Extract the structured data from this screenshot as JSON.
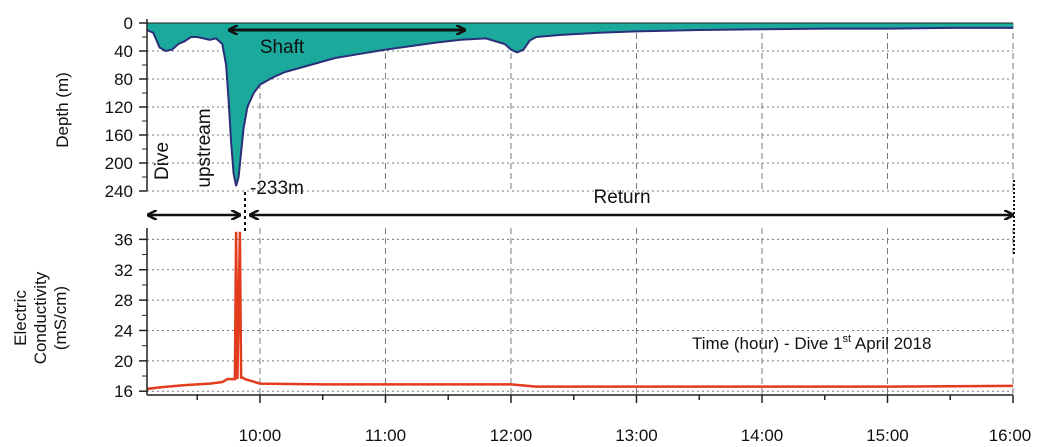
{
  "chart_data": [
    {
      "type": "area",
      "panel": "top",
      "ylabel": "Depth (m)",
      "y_inverted": true,
      "ylim": [
        0,
        240
      ],
      "yticks": [
        0,
        40,
        80,
        120,
        160,
        200,
        240
      ],
      "xlim": [
        9.1,
        16.0
      ],
      "x_gridlines": [
        9.5,
        10,
        10.5,
        11,
        11.5,
        12,
        12.5,
        13,
        13.5,
        14,
        14.5,
        15,
        15.5,
        16
      ],
      "grid": "dashed",
      "series": [
        {
          "color": "#1ba99c",
          "line_color": "#2a2f7a",
          "x": [
            9.1,
            9.15,
            9.2,
            9.25,
            9.3,
            9.35,
            9.4,
            9.45,
            9.5,
            9.55,
            9.6,
            9.65,
            9.7,
            9.73,
            9.75,
            9.77,
            9.79,
            9.81,
            9.83,
            9.85,
            9.87,
            9.9,
            9.95,
            10.0,
            10.1,
            10.2,
            10.3,
            10.4,
            10.5,
            10.6,
            10.8,
            11.0,
            11.2,
            11.4,
            11.6,
            11.8,
            11.95,
            12.0,
            12.05,
            12.1,
            12.15,
            12.2,
            12.4,
            12.7,
            13.0,
            13.5,
            14.0,
            14.5,
            15.0,
            15.5,
            16.0
          ],
          "y": [
            10,
            14,
            35,
            40,
            38,
            30,
            26,
            20,
            20,
            22,
            24,
            22,
            30,
            60,
            110,
            170,
            215,
            233,
            220,
            185,
            150,
            120,
            100,
            88,
            78,
            70,
            65,
            60,
            55,
            50,
            44,
            38,
            33,
            28,
            24,
            22,
            30,
            38,
            42,
            38,
            25,
            20,
            17,
            14,
            12,
            10,
            9,
            8,
            8,
            7,
            7
          ]
        }
      ],
      "annotations": [
        "Shaft",
        "Dive upstream",
        "-233m",
        "Return"
      ]
    },
    {
      "type": "line",
      "panel": "bottom",
      "ylabel": "Electric Conductivity (mS/cm)",
      "ylim": [
        15.5,
        37.5
      ],
      "yticks": [
        16,
        20,
        24,
        28,
        32,
        36
      ],
      "xlim": [
        9.1,
        16.0
      ],
      "xticks": [
        "10:00",
        "11:00",
        "12:00",
        "13:00",
        "14:00",
        "15:00",
        "16:00"
      ],
      "xtick_values": [
        10,
        11,
        12,
        13,
        14,
        15,
        16
      ],
      "x_gridlines": [
        9.5,
        10,
        10.5,
        11,
        11.5,
        12,
        12.5,
        13,
        13.5,
        14,
        14.5,
        15,
        15.5,
        16
      ],
      "grid": "dashed",
      "series": [
        {
          "color": "#e23b1d",
          "x": [
            9.1,
            9.2,
            9.4,
            9.6,
            9.7,
            9.74,
            9.76,
            9.8,
            9.81,
            9.82,
            9.84,
            9.85,
            9.86,
            9.88,
            9.92,
            10.0,
            10.5,
            11.0,
            11.5,
            12.0,
            12.2,
            12.5,
            13.0,
            14.0,
            15.0,
            16.0
          ],
          "y": [
            16.3,
            16.5,
            16.8,
            17.0,
            17.2,
            17.6,
            17.6,
            17.6,
            37.0,
            17.6,
            37.0,
            17.8,
            17.8,
            17.6,
            17.4,
            17.0,
            16.9,
            16.9,
            16.9,
            16.9,
            16.6,
            16.6,
            16.6,
            16.6,
            16.6,
            16.7
          ]
        }
      ],
      "annotations": [
        "Time (hour) - Dive 1",
        "st",
        " April 2018"
      ]
    }
  ],
  "labels": {
    "depth_axis": "Depth (m)",
    "ec_axis_line1": "Electric",
    "ec_axis_line2": "Conductivity",
    "ec_axis_line3": "(mS/cm)",
    "shaft": "Shaft",
    "dive": "Dive",
    "upstream": "upstream",
    "depth_min": "-233m",
    "return": "Return",
    "time_note_a": "Time (hour) - Dive 1",
    "time_note_sup": "st",
    "time_note_b": " April 2018"
  },
  "colors": {
    "area_fill": "#1ba99c",
    "area_line": "#2a2f7a",
    "ec_line": "#e23b1d",
    "grid": "#7a7a7a",
    "axis": "#222222"
  }
}
